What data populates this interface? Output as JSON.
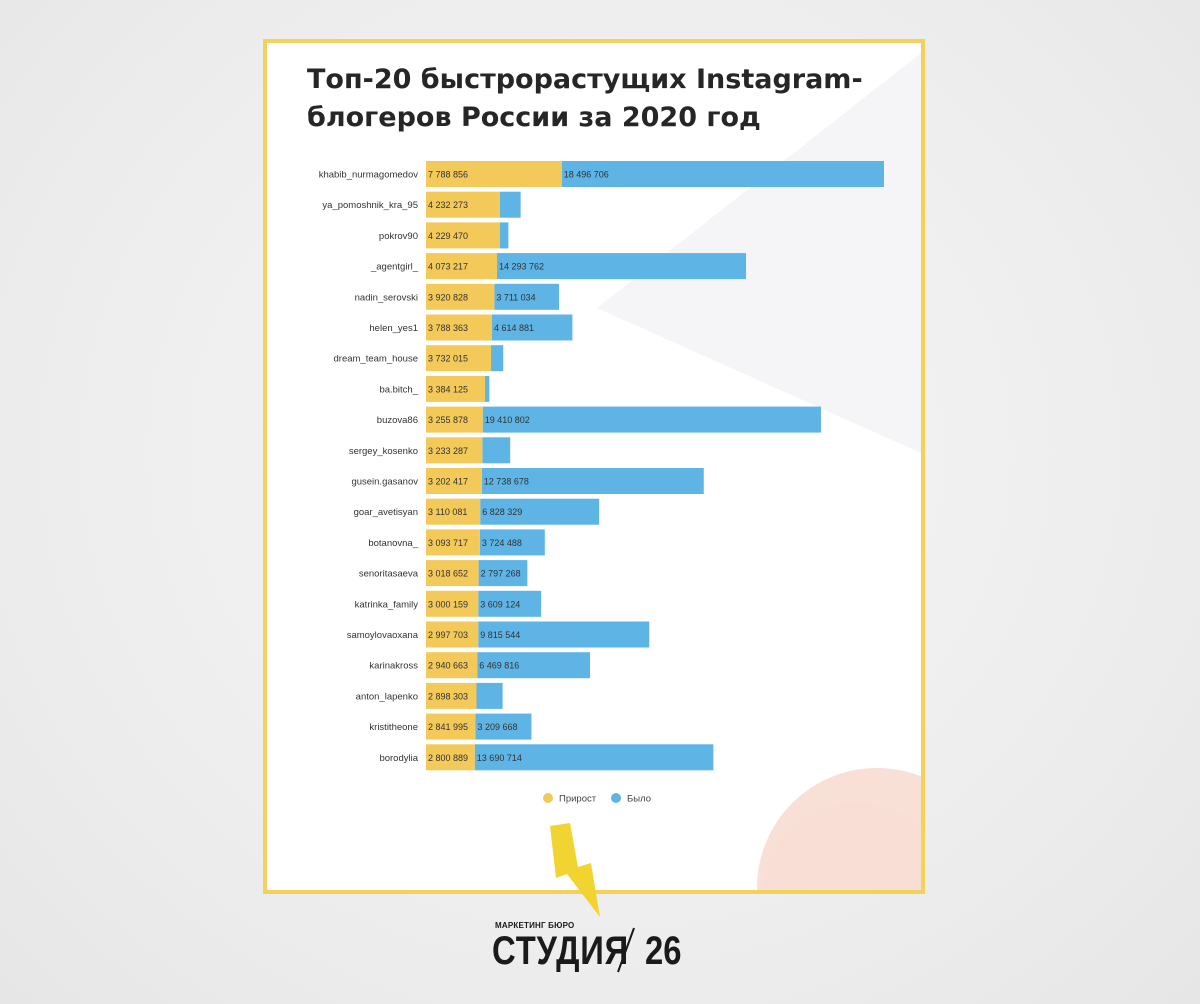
{
  "chart_data": {
    "type": "bar",
    "title": "Топ-20 быстрорастущих Instagram-блогеров России за 2020 год",
    "categories": [
      "khabib_nurmagomedov",
      "ya_pomoshnik_kra_95",
      "pokrov90",
      "_agentgirl_",
      "nadin_serovski",
      "helen_yes1",
      "dream_team_house",
      "ba.bitch_",
      "buzova86",
      "sergey_kosenko",
      "gusein.gasanov",
      "goar_avetisyan",
      "botanovna_",
      "senoritasaeva",
      "katrinka_family",
      "samoylovaoxana",
      "karinakross",
      "anton_lapenko",
      "kristitheone",
      "borodylia"
    ],
    "series": [
      {
        "name": "Прирост",
        "color": "#f3c95a",
        "values": [
          7788856,
          4232273,
          4229470,
          4073217,
          3920828,
          3788363,
          3732015,
          3384125,
          3255878,
          3233287,
          3202417,
          3110081,
          3093717,
          3018652,
          3000159,
          2997703,
          2940663,
          2898303,
          2841995,
          2800889
        ],
        "labels": [
          "7 788 856",
          "4 232 273",
          "4 229 470",
          "4 073 217",
          "3 920 828",
          "3 788 363",
          "3 732 015",
          "3 384 125",
          "3 255 878",
          "3 233 287",
          "3 202 417",
          "3 110 081",
          "3 093 717",
          "3 018 652",
          "3 000 159",
          "2 997 703",
          "2 940 663",
          "2 898 303",
          "2 841 995",
          "2 800 889"
        ]
      },
      {
        "name": "Было",
        "color": "#5db4e5",
        "values": [
          18496706,
          1200000,
          500000,
          14293762,
          3711034,
          4614881,
          700000,
          250000,
          19410802,
          1600000,
          12738678,
          6828329,
          3724488,
          2797268,
          3609124,
          9815544,
          6469816,
          1500000,
          3209668,
          13690714
        ],
        "labels": [
          "18 496 706",
          "",
          "",
          "14 293 762",
          "3 711 034",
          "4 614 881",
          "",
          "",
          "19 410 802",
          "",
          "12 738 678",
          "6 828 329",
          "3 724 488",
          "2 797 268",
          "3 609 124",
          "9 815 544",
          "6 469 816",
          "",
          "3 209 668",
          "13 690 714"
        ]
      }
    ],
    "stacked": true,
    "legend_position": "bottom-center",
    "grid": false
  },
  "logo": {
    "small_text": "МАРКЕТИНГ БЮРО",
    "name": "СТУДИЯ",
    "number": "26"
  },
  "colors": {
    "card_border": "#f2d25a",
    "lightning": "#f2d430",
    "page_background": "#efefef"
  }
}
